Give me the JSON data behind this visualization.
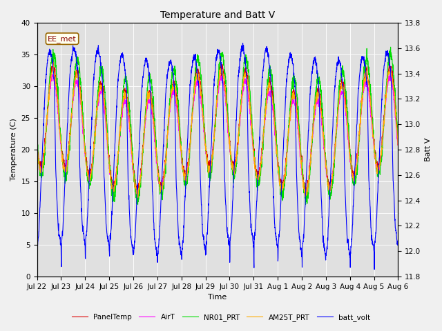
{
  "title": "Temperature and Batt V",
  "xlabel": "Time",
  "ylabel_left": "Temperature (C)",
  "ylabel_right": "Batt V",
  "annotation": "EE_met",
  "ylim_left": [
    0,
    40
  ],
  "ylim_right": [
    11.8,
    13.8
  ],
  "plot_bg": "#e0e0e0",
  "fig_bg": "#f0f0f0",
  "legend": [
    {
      "label": "PanelTemp",
      "color": "#dd0000"
    },
    {
      "label": "AirT",
      "color": "#ff00ff"
    },
    {
      "label": "NR01_PRT",
      "color": "#00dd00"
    },
    {
      "label": "AM25T_PRT",
      "color": "#ffaa00"
    },
    {
      "label": "batt_volt",
      "color": "#0000ff"
    }
  ],
  "tick_labels": [
    "Jul 22",
    "Jul 23",
    "Jul 24",
    "Jul 25",
    "Jul 26",
    "Jul 27",
    "Jul 28",
    "Jul 29",
    "Jul 30",
    "Jul 31",
    "Aug 1",
    "Aug 2",
    "Aug 3",
    "Aug 4",
    "Aug 5",
    "Aug 6"
  ],
  "num_days": 15,
  "pts_per_day": 144
}
